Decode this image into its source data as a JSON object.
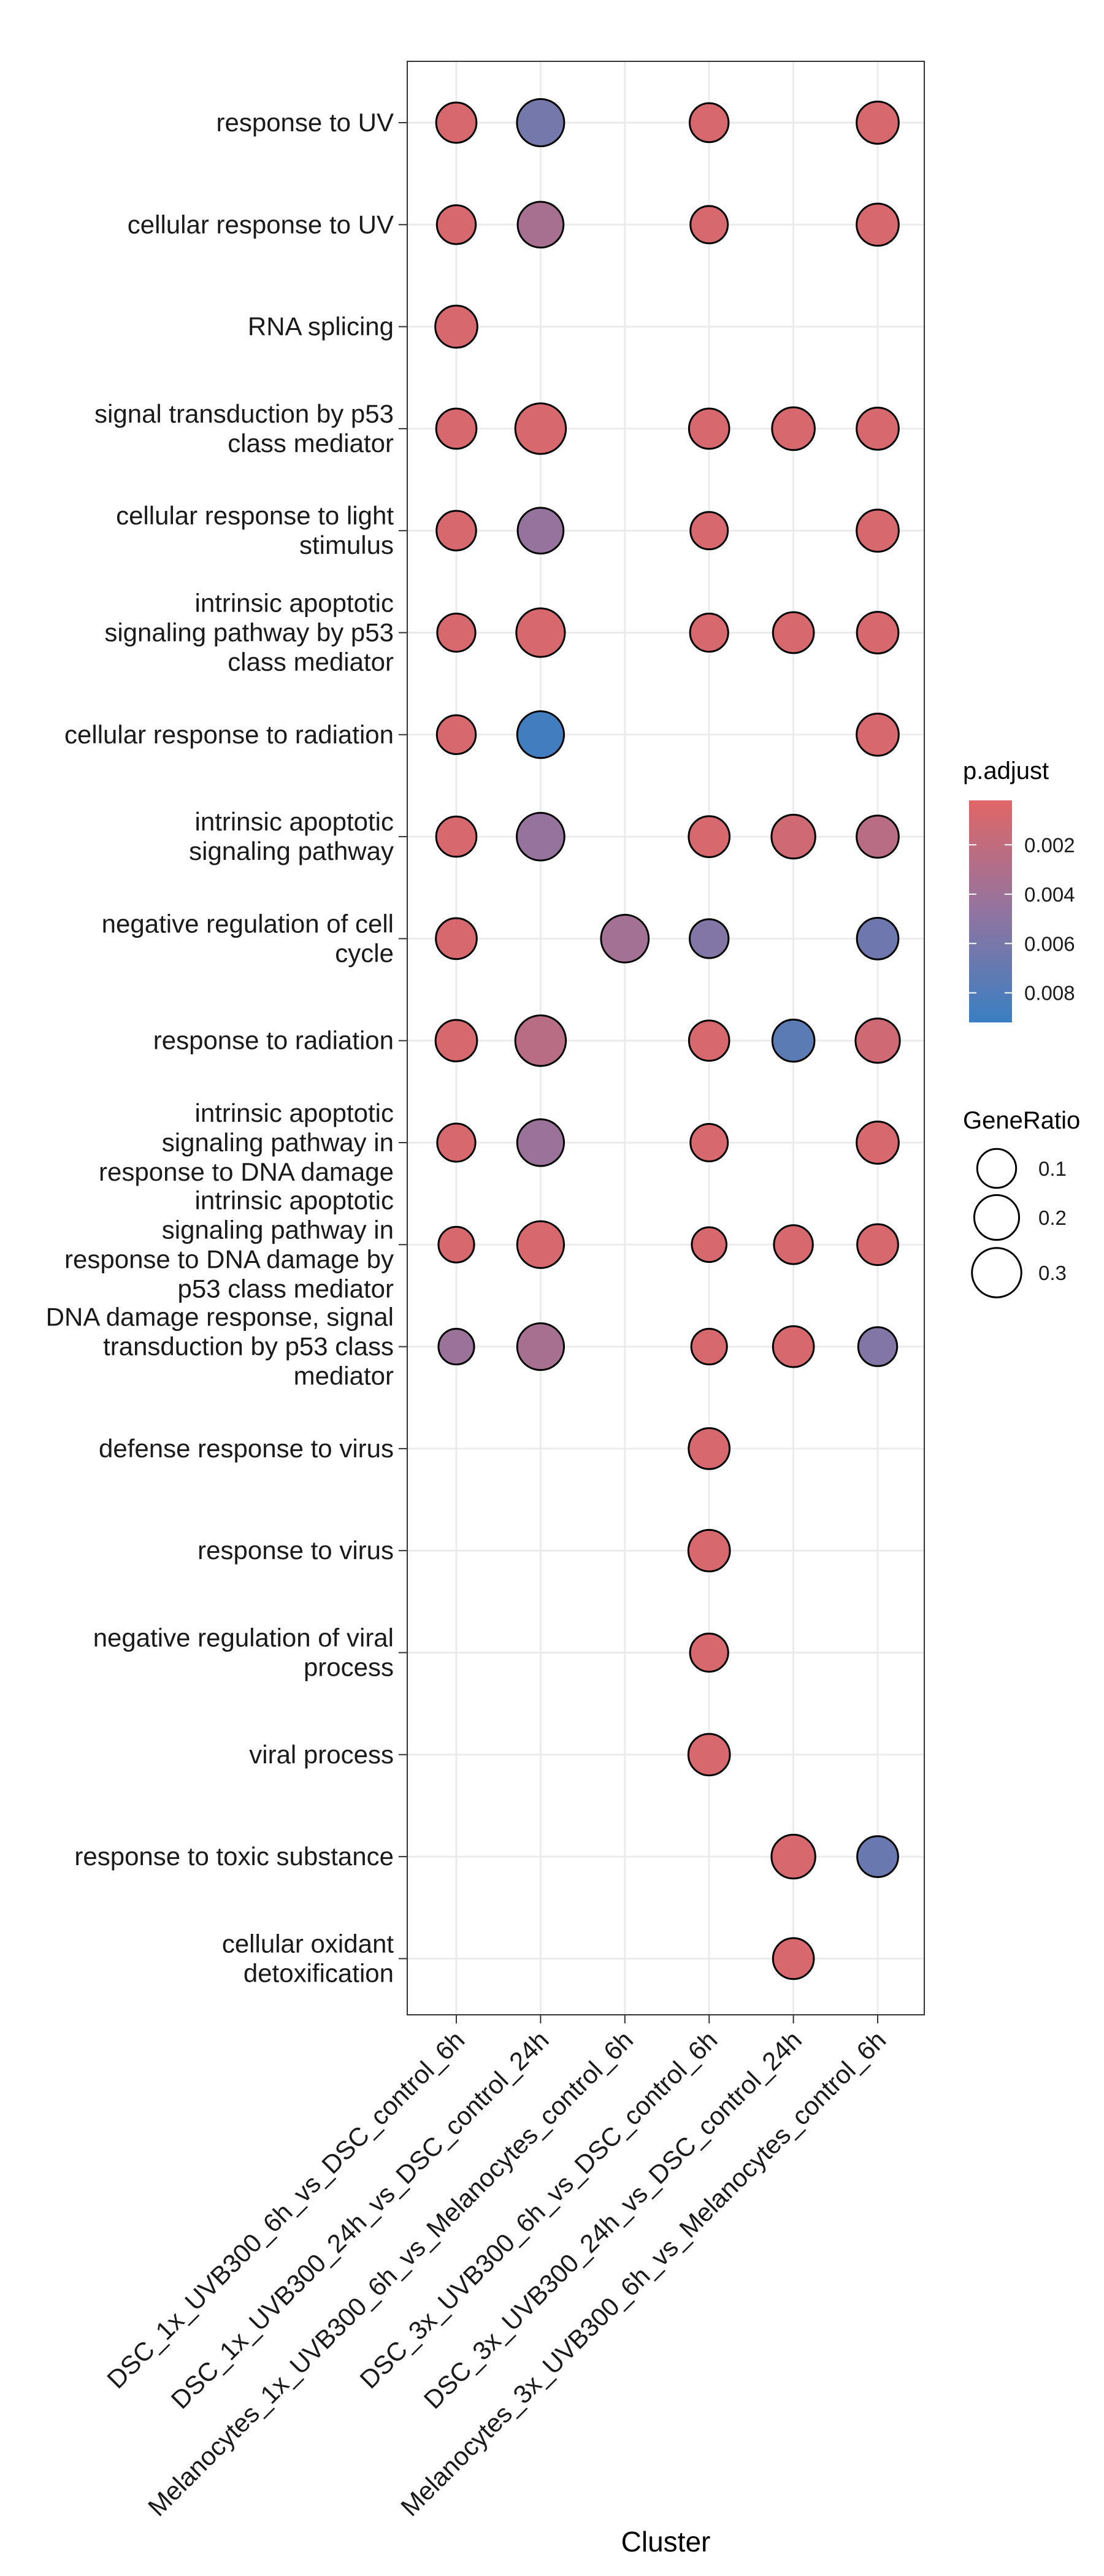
{
  "chart_data": {
    "type": "dot",
    "xlabel": "Cluster",
    "ylabel": "",
    "grid": true,
    "clusters": [
      "DSC_1x_UVB300_6h_vs_DSC_control_6h",
      "DSC_1x_UVB300_24h_vs_DSC_control_24h",
      "Melanocytes_1x_UVB300_6h_vs_Melanocytes_control_6h",
      "DSC_3x_UVB300_6h_vs_DSC_control_6h",
      "DSC_3x_UVB300_24h_vs_DSC_control_24h",
      "Melanocytes_3x_UVB300_6h_vs_Melanocytes_control_6h"
    ],
    "terms": [
      {
        "lines": [
          "response to UV"
        ]
      },
      {
        "lines": [
          "cellular response to UV"
        ]
      },
      {
        "lines": [
          "RNA splicing"
        ]
      },
      {
        "lines": [
          "signal transduction by p53",
          "class mediator"
        ]
      },
      {
        "lines": [
          "cellular response to light",
          "stimulus"
        ]
      },
      {
        "lines": [
          "intrinsic apoptotic",
          "signaling pathway by p53",
          "class mediator"
        ]
      },
      {
        "lines": [
          "cellular response to radiation"
        ]
      },
      {
        "lines": [
          "intrinsic apoptotic",
          "signaling pathway"
        ]
      },
      {
        "lines": [
          "negative regulation of cell",
          "cycle"
        ]
      },
      {
        "lines": [
          "response to radiation"
        ]
      },
      {
        "lines": [
          "intrinsic apoptotic",
          "signaling pathway in",
          "response to DNA damage"
        ]
      },
      {
        "lines": [
          "intrinsic apoptotic",
          "signaling pathway in",
          "response to DNA damage by",
          "p53 class mediator"
        ]
      },
      {
        "lines": [
          "DNA damage response, signal",
          "transduction by p53 class",
          "mediator"
        ]
      },
      {
        "lines": [
          "defense response to virus"
        ]
      },
      {
        "lines": [
          "response to virus"
        ]
      },
      {
        "lines": [
          "negative regulation of viral",
          "process"
        ]
      },
      {
        "lines": [
          "viral process"
        ]
      },
      {
        "lines": [
          "response to toxic substance"
        ]
      },
      {
        "lines": [
          "cellular oxidant",
          "detoxification"
        ]
      }
    ],
    "points": [
      {
        "term": 0,
        "cluster": 0,
        "gene_ratio": 0.12,
        "p_adjust": 0.0008
      },
      {
        "term": 0,
        "cluster": 1,
        "gene_ratio": 0.25,
        "p_adjust": 0.0062
      },
      {
        "term": 0,
        "cluster": 3,
        "gene_ratio": 0.1,
        "p_adjust": 0.0008
      },
      {
        "term": 0,
        "cluster": 5,
        "gene_ratio": 0.15,
        "p_adjust": 0.0008
      },
      {
        "term": 1,
        "cluster": 0,
        "gene_ratio": 0.1,
        "p_adjust": 0.0008
      },
      {
        "term": 1,
        "cluster": 1,
        "gene_ratio": 0.22,
        "p_adjust": 0.0035
      },
      {
        "term": 1,
        "cluster": 3,
        "gene_ratio": 0.08,
        "p_adjust": 0.0008
      },
      {
        "term": 1,
        "cluster": 5,
        "gene_ratio": 0.15,
        "p_adjust": 0.0008
      },
      {
        "term": 2,
        "cluster": 0,
        "gene_ratio": 0.15,
        "p_adjust": 0.0008
      },
      {
        "term": 3,
        "cluster": 0,
        "gene_ratio": 0.12,
        "p_adjust": 0.0008
      },
      {
        "term": 3,
        "cluster": 1,
        "gene_ratio": 0.33,
        "p_adjust": 0.0008
      },
      {
        "term": 3,
        "cluster": 3,
        "gene_ratio": 0.12,
        "p_adjust": 0.0008
      },
      {
        "term": 3,
        "cluster": 4,
        "gene_ratio": 0.16,
        "p_adjust": 0.0008
      },
      {
        "term": 3,
        "cluster": 5,
        "gene_ratio": 0.15,
        "p_adjust": 0.0008
      },
      {
        "term": 4,
        "cluster": 0,
        "gene_ratio": 0.11,
        "p_adjust": 0.0008
      },
      {
        "term": 4,
        "cluster": 1,
        "gene_ratio": 0.22,
        "p_adjust": 0.0045
      },
      {
        "term": 4,
        "cluster": 3,
        "gene_ratio": 0.08,
        "p_adjust": 0.0008
      },
      {
        "term": 4,
        "cluster": 5,
        "gene_ratio": 0.15,
        "p_adjust": 0.0008
      },
      {
        "term": 5,
        "cluster": 0,
        "gene_ratio": 0.09,
        "p_adjust": 0.0008
      },
      {
        "term": 5,
        "cluster": 1,
        "gene_ratio": 0.28,
        "p_adjust": 0.0008
      },
      {
        "term": 5,
        "cluster": 3,
        "gene_ratio": 0.09,
        "p_adjust": 0.0008
      },
      {
        "term": 5,
        "cluster": 4,
        "gene_ratio": 0.13,
        "p_adjust": 0.0008
      },
      {
        "term": 5,
        "cluster": 5,
        "gene_ratio": 0.14,
        "p_adjust": 0.0008
      },
      {
        "term": 6,
        "cluster": 0,
        "gene_ratio": 0.1,
        "p_adjust": 0.0008
      },
      {
        "term": 6,
        "cluster": 1,
        "gene_ratio": 0.24,
        "p_adjust": 0.0088
      },
      {
        "term": 6,
        "cluster": 5,
        "gene_ratio": 0.15,
        "p_adjust": 0.0008
      },
      {
        "term": 7,
        "cluster": 0,
        "gene_ratio": 0.12,
        "p_adjust": 0.0008
      },
      {
        "term": 7,
        "cluster": 1,
        "gene_ratio": 0.26,
        "p_adjust": 0.0045
      },
      {
        "term": 7,
        "cluster": 3,
        "gene_ratio": 0.13,
        "p_adjust": 0.0008
      },
      {
        "term": 7,
        "cluster": 4,
        "gene_ratio": 0.18,
        "p_adjust": 0.0012
      },
      {
        "term": 7,
        "cluster": 5,
        "gene_ratio": 0.15,
        "p_adjust": 0.0025
      },
      {
        "term": 8,
        "cluster": 0,
        "gene_ratio": 0.13,
        "p_adjust": 0.0008
      },
      {
        "term": 8,
        "cluster": 2,
        "gene_ratio": 0.26,
        "p_adjust": 0.0038
      },
      {
        "term": 8,
        "cluster": 3,
        "gene_ratio": 0.1,
        "p_adjust": 0.0055
      },
      {
        "term": 8,
        "cluster": 5,
        "gene_ratio": 0.14,
        "p_adjust": 0.0065
      },
      {
        "term": 9,
        "cluster": 0,
        "gene_ratio": 0.14,
        "p_adjust": 0.0008
      },
      {
        "term": 9,
        "cluster": 1,
        "gene_ratio": 0.33,
        "p_adjust": 0.0025
      },
      {
        "term": 9,
        "cluster": 3,
        "gene_ratio": 0.12,
        "p_adjust": 0.0008
      },
      {
        "term": 9,
        "cluster": 4,
        "gene_ratio": 0.15,
        "p_adjust": 0.0075
      },
      {
        "term": 9,
        "cluster": 5,
        "gene_ratio": 0.19,
        "p_adjust": 0.0012
      },
      {
        "term": 10,
        "cluster": 0,
        "gene_ratio": 0.09,
        "p_adjust": 0.0008
      },
      {
        "term": 10,
        "cluster": 1,
        "gene_ratio": 0.24,
        "p_adjust": 0.0042
      },
      {
        "term": 10,
        "cluster": 3,
        "gene_ratio": 0.08,
        "p_adjust": 0.0008
      },
      {
        "term": 10,
        "cluster": 5,
        "gene_ratio": 0.15,
        "p_adjust": 0.0008
      },
      {
        "term": 11,
        "cluster": 0,
        "gene_ratio": 0.06,
        "p_adjust": 0.0008
      },
      {
        "term": 11,
        "cluster": 1,
        "gene_ratio": 0.24,
        "p_adjust": 0.0008
      },
      {
        "term": 11,
        "cluster": 3,
        "gene_ratio": 0.05,
        "p_adjust": 0.0008
      },
      {
        "term": 11,
        "cluster": 4,
        "gene_ratio": 0.1,
        "p_adjust": 0.0008
      },
      {
        "term": 11,
        "cluster": 5,
        "gene_ratio": 0.13,
        "p_adjust": 0.0008
      },
      {
        "term": 12,
        "cluster": 0,
        "gene_ratio": 0.06,
        "p_adjust": 0.0042
      },
      {
        "term": 12,
        "cluster": 1,
        "gene_ratio": 0.24,
        "p_adjust": 0.0035
      },
      {
        "term": 12,
        "cluster": 3,
        "gene_ratio": 0.06,
        "p_adjust": 0.0008
      },
      {
        "term": 12,
        "cluster": 4,
        "gene_ratio": 0.13,
        "p_adjust": 0.0008
      },
      {
        "term": 12,
        "cluster": 5,
        "gene_ratio": 0.1,
        "p_adjust": 0.0055
      },
      {
        "term": 13,
        "cluster": 3,
        "gene_ratio": 0.13,
        "p_adjust": 0.0008
      },
      {
        "term": 14,
        "cluster": 3,
        "gene_ratio": 0.14,
        "p_adjust": 0.0008
      },
      {
        "term": 15,
        "cluster": 3,
        "gene_ratio": 0.09,
        "p_adjust": 0.0008
      },
      {
        "term": 16,
        "cluster": 3,
        "gene_ratio": 0.14,
        "p_adjust": 0.0008
      },
      {
        "term": 17,
        "cluster": 4,
        "gene_ratio": 0.18,
        "p_adjust": 0.0008
      },
      {
        "term": 17,
        "cluster": 5,
        "gene_ratio": 0.13,
        "p_adjust": 0.0068
      },
      {
        "term": 18,
        "cluster": 4,
        "gene_ratio": 0.13,
        "p_adjust": 0.0008
      }
    ],
    "legend_color": {
      "title": "p.adjust",
      "labels": [
        "0.002",
        "0.004",
        "0.006",
        "0.008"
      ],
      "ticks": [
        0.002,
        0.004,
        0.006,
        0.008
      ],
      "range": [
        0.0002,
        0.0092
      ],
      "low_color": "#e06666",
      "high_color": "#3a7fc2",
      "placement": "right"
    },
    "legend_size": {
      "title": "GeneRatio",
      "labels": [
        "0.1",
        "0.2",
        "0.3"
      ],
      "values": [
        0.1,
        0.2,
        0.3
      ]
    }
  }
}
